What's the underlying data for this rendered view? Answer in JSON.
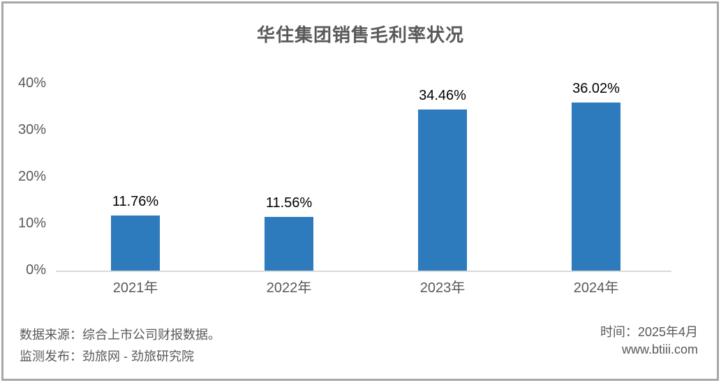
{
  "chart_data": {
    "type": "bar",
    "title": "华住集团销售毛利率状况",
    "categories": [
      "2021年",
      "2022年",
      "2023年",
      "2024年"
    ],
    "values": [
      11.76,
      11.56,
      34.46,
      36.02
    ],
    "value_labels": [
      "11.76%",
      "11.56%",
      "34.46%",
      "36.02%"
    ],
    "xlabel": "",
    "ylabel": "",
    "ylim": [
      0,
      40
    ],
    "yticks": [
      0,
      10,
      20,
      30,
      40
    ],
    "ytick_labels": [
      "0%",
      "10%",
      "20%",
      "30%",
      "40%"
    ],
    "grid": false,
    "legend": false,
    "bar_color": "#2d7bbc",
    "axis_line_color": "#d9d9d9",
    "text_color": "#595959",
    "value_label_color": "#000000",
    "frame_border_color": "#a7a7a7"
  },
  "footer": {
    "source_line": "数据来源：综合上市公司财报数据。",
    "publisher_line": "监测发布：劲旅网 - 劲旅研究院",
    "time_line": "时间：2025年4月",
    "website": "www.btiii.com"
  }
}
